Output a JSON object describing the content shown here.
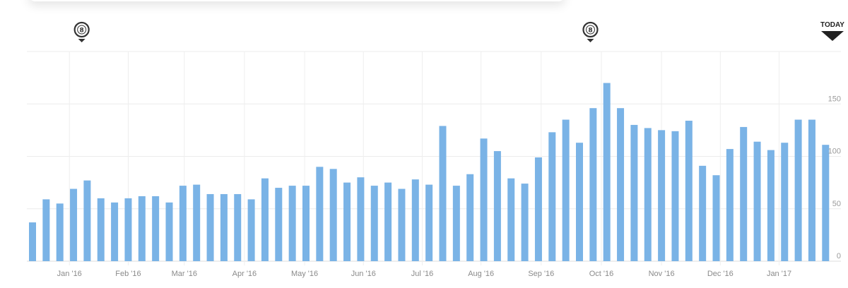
{
  "chart_data": {
    "type": "bar",
    "title": "",
    "xlabel": "",
    "ylabel": "",
    "ylim": [
      0,
      200
    ],
    "y_ticks": [
      "0",
      "50",
      "100",
      "150"
    ],
    "y_tick_values": [
      0,
      50,
      100,
      150
    ],
    "grid": true,
    "bar_color": "#7ab3e6",
    "x_tick_labels": [
      "Jan '16",
      "Feb '16",
      "Mar '16",
      "Apr '16",
      "May '16",
      "Jun '16",
      "Jul '16",
      "Aug '16",
      "Sep '16",
      "Oct '16",
      "Nov '16",
      "Dec '16",
      "Jan '17"
    ],
    "x_tick_bar_index": [
      2.7,
      7.0,
      11.1,
      15.5,
      19.9,
      24.2,
      28.5,
      32.8,
      37.2,
      41.6,
      46.0,
      50.3,
      54.6
    ],
    "values": [
      37,
      59,
      55,
      69,
      77,
      60,
      56,
      60,
      62,
      62,
      56,
      72,
      73,
      64,
      64,
      64,
      59,
      79,
      70,
      72,
      72,
      90,
      88,
      75,
      80,
      72,
      75,
      69,
      78,
      73,
      129,
      72,
      83,
      117,
      105,
      79,
      74,
      99,
      123,
      135,
      113,
      146,
      170,
      146,
      130,
      127,
      125,
      124,
      134,
      91,
      82,
      107,
      128,
      114,
      106,
      113,
      135,
      135,
      111
    ],
    "markers": [
      {
        "name": "event-marker-1",
        "icon": "event-pin-icon",
        "glyph": "8",
        "bar_index": 3.6
      },
      {
        "name": "event-marker-2",
        "icon": "event-pin-icon",
        "glyph": "8",
        "bar_index": 40.8
      }
    ],
    "today_label": "TODAY"
  }
}
